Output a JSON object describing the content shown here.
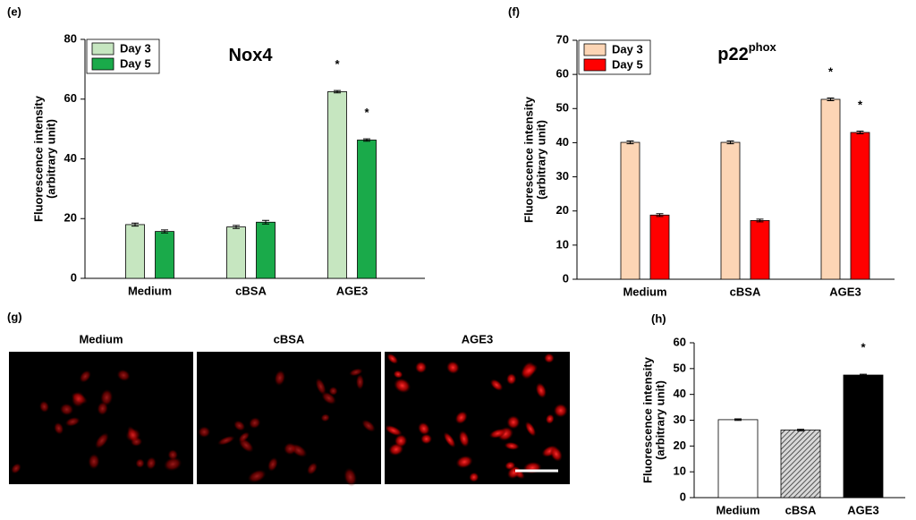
{
  "chart_data": [
    {
      "type": "bar",
      "panel": "(e)",
      "title": "Nox4",
      "ylabel": [
        "Fluorescence intensity",
        "(arbitrary unit)"
      ],
      "categories": [
        "Medium",
        "cBSA",
        "AGE3"
      ],
      "series": [
        {
          "name": "Day 3",
          "color": "#c6e6c0",
          "values": [
            18,
            17.2,
            62.5
          ],
          "errors": [
            0.5,
            0.5,
            0.4
          ],
          "labels": [
            null,
            null,
            "*"
          ]
        },
        {
          "name": "Day 5",
          "color": "#1aaa4a",
          "values": [
            15.7,
            18.8,
            46.3
          ],
          "errors": [
            0.5,
            0.6,
            0.4
          ],
          "labels": [
            null,
            null,
            "*"
          ]
        }
      ],
      "ylim": [
        0,
        80
      ],
      "yticks": [
        0,
        20,
        40,
        60,
        80
      ]
    },
    {
      "type": "bar",
      "panel": "(f)",
      "title": "p22",
      "title_sup": "phox",
      "ylabel": [
        "Fluorescence intensity",
        "(arbitrary unit)"
      ],
      "categories": [
        "Medium",
        "cBSA",
        "AGE3"
      ],
      "series": [
        {
          "name": "Day 3",
          "color": "#fcd5b5",
          "values": [
            40.1,
            40.1,
            52.7
          ],
          "errors": [
            0.4,
            0.4,
            0.4
          ],
          "labels": [
            null,
            null,
            "*"
          ]
        },
        {
          "name": "Day 5",
          "color": "#ff0000",
          "values": [
            18.8,
            17.2,
            43
          ],
          "errors": [
            0.4,
            0.4,
            0.4
          ],
          "labels": [
            null,
            null,
            "*"
          ]
        }
      ],
      "ylim": [
        0,
        70
      ],
      "yticks": [
        0,
        10,
        20,
        30,
        40,
        50,
        60,
        70
      ]
    },
    {
      "type": "bar",
      "panel": "(h)",
      "ylabel": [
        "Fluorescence intensity",
        "(arbitrary unit)"
      ],
      "categories": [
        "Medium",
        "cBSA",
        "AGE3"
      ],
      "values": [
        30.2,
        26.2,
        47.5
      ],
      "errors": [
        0.3,
        0.3,
        0.3
      ],
      "colors": [
        "#ffffff",
        "#808080",
        "#000000"
      ],
      "hatch": [
        false,
        true,
        false
      ],
      "labels": [
        null,
        null,
        "*"
      ],
      "ylim": [
        0,
        60
      ],
      "yticks": [
        0,
        10,
        20,
        30,
        40,
        50,
        60
      ]
    }
  ],
  "images": {
    "panel": "(g)",
    "captions": [
      "Medium",
      "cBSA",
      "AGE3"
    ]
  }
}
